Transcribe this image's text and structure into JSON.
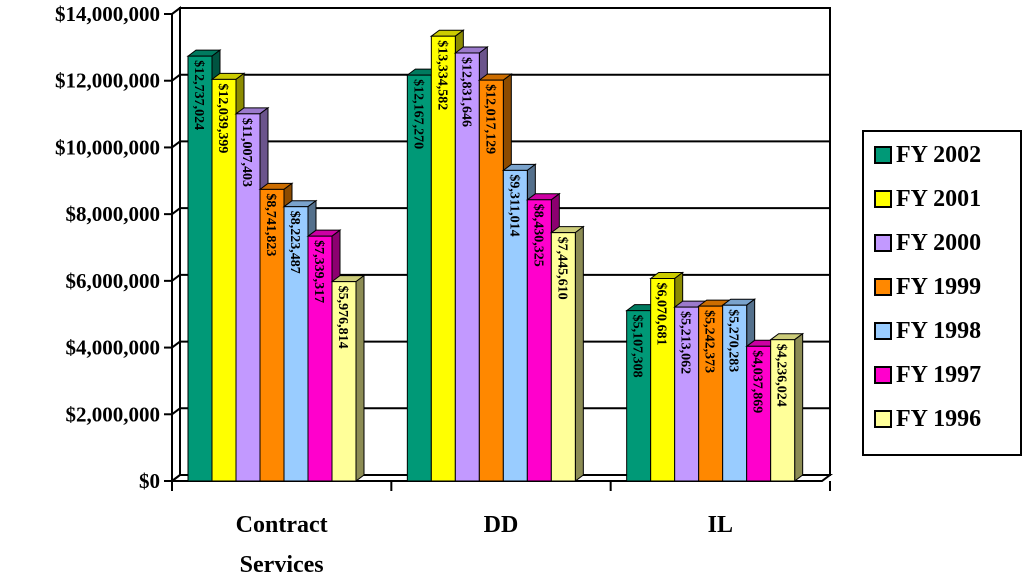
{
  "chart_data": {
    "type": "bar",
    "categories": [
      "Contract Services",
      "DD",
      "IL"
    ],
    "category_lines": [
      [
        "Contract",
        "Services"
      ],
      [
        "DD"
      ],
      [
        "IL"
      ]
    ],
    "ylim": [
      0,
      14000000
    ],
    "yticks": [
      0,
      2000000,
      4000000,
      6000000,
      8000000,
      10000000,
      12000000,
      14000000
    ],
    "ytick_labels": [
      "$0",
      "$2,000,000",
      "$4,000,000",
      "$6,000,000",
      "$8,000,000",
      "$10,000,000",
      "$12,000,000",
      "$14,000,000"
    ],
    "grid": true,
    "legend_position": "right",
    "series": [
      {
        "name": "FY 2002",
        "color": "#009977",
        "values": [
          12737024,
          12167270,
          5107308
        ],
        "labels": [
          "$12,737,024",
          "$12,167,270",
          "$5,107,308"
        ]
      },
      {
        "name": "FY 2001",
        "color": "#ffff00",
        "values": [
          12039399,
          13334582,
          6070681
        ],
        "labels": [
          "$12,039,399",
          "$13,334,582",
          "$6,070,681"
        ]
      },
      {
        "name": "FY 2000",
        "color": "#c299ff",
        "values": [
          11007403,
          12831646,
          5213062
        ],
        "labels": [
          "$11,007,403",
          "$12,831,646",
          "$5,213,062"
        ]
      },
      {
        "name": "FY 1999",
        "color": "#ff8800",
        "values": [
          8741823,
          12017129,
          5242373
        ],
        "labels": [
          "$8,741,823",
          "$12,017,129",
          "$5,242,373"
        ]
      },
      {
        "name": "FY 1998",
        "color": "#99ccff",
        "values": [
          8223487,
          9311014,
          5270283
        ],
        "labels": [
          "$8,223,487",
          "$9,311,014",
          "$5,270,283"
        ]
      },
      {
        "name": "FY 1997",
        "color": "#ff00cc",
        "values": [
          7339317,
          8430325,
          4037869
        ],
        "labels": [
          "$7,339,317",
          "$8,430,325",
          "$4,037,869"
        ]
      },
      {
        "name": "FY 1996",
        "color": "#ffff99",
        "values": [
          5976814,
          7445610,
          4236024
        ],
        "labels": [
          "$5,976,814",
          "$7,445,610",
          "$4,236,024"
        ]
      }
    ]
  }
}
